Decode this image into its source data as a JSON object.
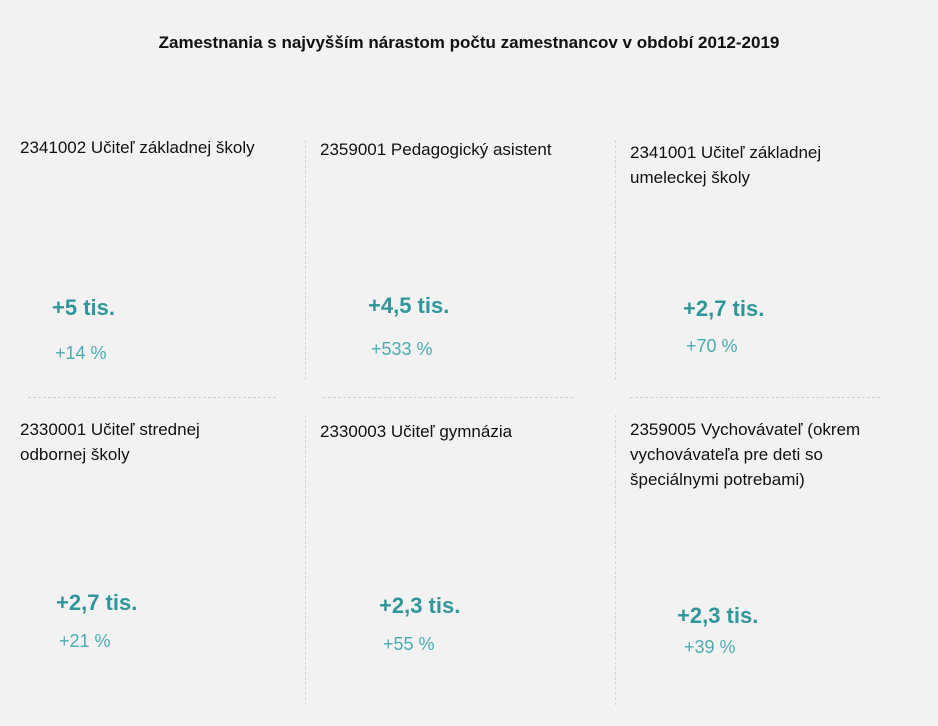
{
  "title": "Zamestnania s najvyšším nárastom počtu zamestnancov v období 2012-2019",
  "cards": [
    {
      "name": "2341002  Učiteľ základnej školy",
      "value": "+5 tis.",
      "pct": "+14 %"
    },
    {
      "name": "2359001  Pedagogický asistent",
      "value": "+4,5 tis.",
      "pct": "+533 %"
    },
    {
      "name": "2341001  Učiteľ základnej umeleckej školy",
      "value": "+2,7 tis.",
      "pct": "+70 %"
    },
    {
      "name": "2330001  Učiteľ strednej odbornej školy",
      "value": "+2,7 tis.",
      "pct": "+21 %"
    },
    {
      "name": "2330003  Učiteľ gymnázia",
      "value": "+2,3 tis.",
      "pct": "+55 %"
    },
    {
      "name": "2359005  Vychovávateľ (okrem vychovávateľa pre deti so špeciálnymi potrebami)",
      "value": "+2,3 tis.",
      "pct": "+39 %"
    }
  ]
}
